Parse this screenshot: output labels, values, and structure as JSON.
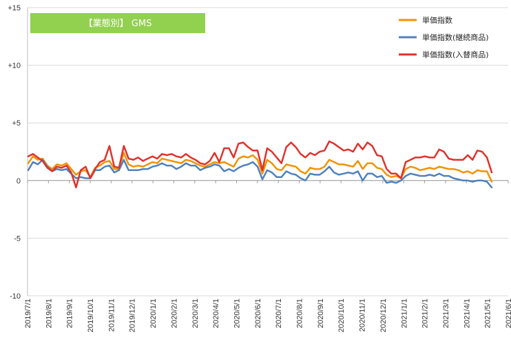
{
  "badge": {
    "label": "【業態別】 GMS",
    "color": "#92D050"
  },
  "chart_data": {
    "type": "line",
    "title": "【業態別】 GMS",
    "xlabel": "",
    "ylabel": "",
    "ylim": [
      -10,
      15
    ],
    "y_ticks": [
      15,
      10,
      5,
      0,
      -5,
      -10
    ],
    "y_tick_labels": [
      "+15",
      "+10",
      "+5",
      "0",
      "-5",
      "-10"
    ],
    "x_tick_labels": [
      "2019/7/1",
      "2019/8/1",
      "2019/9/1",
      "2019/10/1",
      "2019/11/1",
      "2019/12/1",
      "2020/1/1",
      "2020/2/1",
      "2020/3/1",
      "2020/4/1",
      "2020/5/1",
      "2020/6/1",
      "2020/7/1",
      "2020/8/1",
      "2020/9/1",
      "2020/10/1",
      "2020/11/1",
      "2020/12/1",
      "2021/1/1",
      "2021/2/1",
      "2021/3/1",
      "2021/4/1",
      "2021/5/1",
      "2021/6/1"
    ],
    "grid": "horizontal",
    "legend_position": "top-right",
    "series": [
      {
        "name": "単価指数",
        "color": "#F39200",
        "values": [
          1.5,
          2.1,
          1.8,
          1.9,
          1.3,
          1.0,
          1.4,
          1.3,
          1.5,
          1.0,
          0.5,
          0.8,
          0.9,
          0.3,
          1.1,
          1.3,
          1.6,
          1.7,
          1.0,
          1.0,
          2.4,
          1.4,
          1.2,
          1.3,
          1.2,
          1.4,
          1.6,
          1.5,
          1.9,
          1.8,
          1.7,
          1.6,
          1.5,
          1.8,
          1.7,
          1.5,
          1.3,
          1.2,
          1.4,
          1.6,
          1.5,
          1.6,
          1.4,
          1.2,
          1.9,
          2.1,
          2.0,
          2.2,
          1.8,
          0.6,
          1.8,
          1.5,
          1.0,
          0.9,
          1.4,
          1.3,
          1.2,
          0.8,
          0.6,
          1.1,
          1.0,
          1.0,
          1.2,
          1.8,
          1.6,
          1.4,
          1.4,
          1.3,
          1.2,
          1.7,
          1.0,
          1.5,
          1.5,
          1.1,
          1.0,
          0.5,
          0.3,
          0.4,
          0.2,
          1.0,
          1.2,
          1.1,
          0.9,
          1.0,
          1.1,
          1.0,
          1.2,
          1.1,
          1.0,
          1.0,
          0.9,
          0.7,
          0.8,
          0.6,
          0.9,
          0.8,
          0.8,
          -0.1
        ]
      },
      {
        "name": "単価指数(継続商品)",
        "color": "#4F81BD",
        "values": [
          0.9,
          1.6,
          1.4,
          1.8,
          1.2,
          0.8,
          1.0,
          0.9,
          1.0,
          0.6,
          0.2,
          0.3,
          0.2,
          0.2,
          0.9,
          0.9,
          1.2,
          1.3,
          0.7,
          0.9,
          1.8,
          0.9,
          0.9,
          0.9,
          1.0,
          1.0,
          1.2,
          1.3,
          1.5,
          1.3,
          1.3,
          1.0,
          1.2,
          1.5,
          1.3,
          1.3,
          0.9,
          1.1,
          1.2,
          1.4,
          1.3,
          0.8,
          1.0,
          0.8,
          1.1,
          1.3,
          1.4,
          1.6,
          1.2,
          0.1,
          0.9,
          0.7,
          0.3,
          0.3,
          0.8,
          0.6,
          0.5,
          0.2,
          0.0,
          0.6,
          0.5,
          0.5,
          0.8,
          1.2,
          0.7,
          0.5,
          0.6,
          0.7,
          0.6,
          0.8,
          0.0,
          0.6,
          0.6,
          0.3,
          0.4,
          -0.2,
          -0.1,
          -0.2,
          0.0,
          0.4,
          0.6,
          0.5,
          0.4,
          0.4,
          0.5,
          0.4,
          0.6,
          0.4,
          0.4,
          0.2,
          0.1,
          0.0,
          0.0,
          -0.1,
          0.0,
          0.0,
          -0.1,
          -0.6
        ]
      },
      {
        "name": "単価指数(入替商品)",
        "color": "#E0312B",
        "values": [
          2.1,
          2.3,
          2.0,
          1.7,
          1.1,
          0.8,
          1.2,
          1.1,
          1.3,
          0.7,
          -0.6,
          0.9,
          1.2,
          0.2,
          1.0,
          1.6,
          1.8,
          3.0,
          1.2,
          1.1,
          3.0,
          1.9,
          1.8,
          2.0,
          1.7,
          1.9,
          2.1,
          1.9,
          2.3,
          2.2,
          2.3,
          2.1,
          2.0,
          2.3,
          2.0,
          1.8,
          1.5,
          1.4,
          1.7,
          2.4,
          1.6,
          2.8,
          2.8,
          2.0,
          3.2,
          3.3,
          2.9,
          2.6,
          2.6,
          0.9,
          2.8,
          2.5,
          2.0,
          1.5,
          2.9,
          3.3,
          2.9,
          2.3,
          2.0,
          2.4,
          2.2,
          2.5,
          2.6,
          3.4,
          3.2,
          2.9,
          2.6,
          2.7,
          2.5,
          3.2,
          2.7,
          3.3,
          3.0,
          2.2,
          2.1,
          1.0,
          0.6,
          0.6,
          0.2,
          1.6,
          1.8,
          2.0,
          2.0,
          2.1,
          2.0,
          2.0,
          2.7,
          2.5,
          1.9,
          1.8,
          1.8,
          1.8,
          2.2,
          1.8,
          2.6,
          2.5,
          2.0,
          0.7
        ]
      }
    ]
  }
}
